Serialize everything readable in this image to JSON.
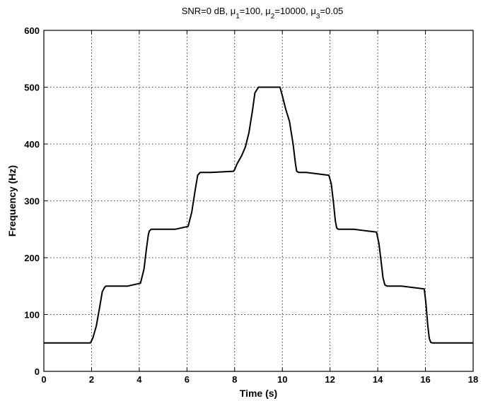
{
  "chart_data": {
    "type": "line",
    "title_parts": {
      "prefix": "SNR=0 dB, ",
      "mu": "μ",
      "sub1": "1",
      "val1": "=100, ",
      "sub2": "2",
      "val2": "=10000, ",
      "sub3": "3",
      "val3": "=0.05"
    },
    "xlabel": "Time (s)",
    "ylabel": "Frequency (Hz)",
    "xlim": [
      0,
      18
    ],
    "ylim": [
      0,
      600
    ],
    "x_ticks": [
      0,
      2,
      4,
      6,
      8,
      10,
      12,
      14,
      16,
      18
    ],
    "y_ticks": [
      0,
      100,
      200,
      300,
      400,
      500,
      600
    ],
    "grid": true,
    "series": [
      {
        "x": [
          0,
          1.95,
          2.05,
          2.2,
          2.35,
          2.45,
          2.55,
          2.6,
          3.5,
          4.05,
          4.2,
          4.3,
          4.38,
          4.42,
          4.5,
          5.5,
          6.05,
          6.2,
          6.35,
          6.45,
          6.55,
          7.0,
          7.95,
          8.0,
          8.1,
          8.3,
          8.45,
          8.6,
          8.75,
          8.85,
          9.0,
          9.5,
          9.9,
          10.0,
          10.15,
          10.3,
          10.45,
          10.55,
          10.6,
          10.7,
          11.0,
          11.95,
          12.05,
          12.15,
          12.22,
          12.28,
          12.35,
          13.0,
          13.95,
          14.05,
          14.15,
          14.22,
          14.3,
          14.4,
          15.0,
          15.95,
          16.02,
          16.1,
          16.16,
          16.22,
          16.3,
          17.0,
          18.0
        ],
        "y": [
          50,
          50,
          58,
          80,
          115,
          140,
          148,
          150,
          150,
          155,
          180,
          215,
          240,
          247,
          250,
          250,
          255,
          280,
          320,
          345,
          350,
          350,
          352,
          355,
          365,
          380,
          395,
          420,
          460,
          490,
          500,
          500,
          500,
          485,
          460,
          440,
          400,
          365,
          352,
          350,
          350,
          345,
          330,
          295,
          265,
          252,
          250,
          250,
          245,
          225,
          190,
          165,
          152,
          150,
          150,
          145,
          120,
          80,
          58,
          51,
          50,
          50,
          50
        ]
      }
    ]
  }
}
